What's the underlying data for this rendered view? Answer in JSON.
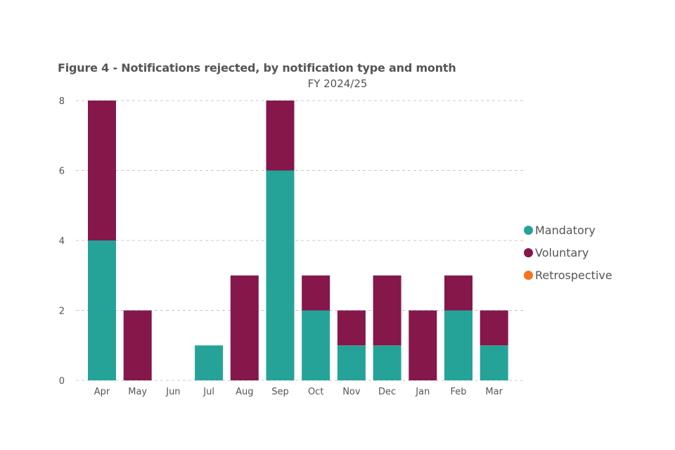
{
  "chart_data": {
    "type": "bar",
    "stacked": true,
    "title": "Figure 4 - Notifications rejected, by notification type and month",
    "subtitle": "FY 2024/25",
    "categories": [
      "Apr",
      "May",
      "Jun",
      "Jul",
      "Aug",
      "Sep",
      "Oct",
      "Nov",
      "Dec",
      "Jan",
      "Feb",
      "Mar"
    ],
    "series": [
      {
        "name": "Mandatory",
        "color": "#26a398",
        "values": [
          4,
          0,
          0,
          1,
          0,
          6,
          2,
          1,
          1,
          0,
          2,
          1
        ]
      },
      {
        "name": "Voluntary",
        "color": "#85174a",
        "values": [
          4,
          2,
          0,
          0,
          3,
          2,
          1,
          1,
          2,
          2,
          1,
          1
        ]
      },
      {
        "name": "Retrospective",
        "color": "#f27321",
        "values": [
          0,
          0,
          0,
          0,
          0,
          0,
          0,
          0,
          0,
          0,
          0,
          0
        ]
      }
    ],
    "yticks": [
      0,
      2,
      4,
      6,
      8
    ],
    "ylim": [
      0,
      8
    ],
    "grid": true,
    "legend_position": "right"
  }
}
